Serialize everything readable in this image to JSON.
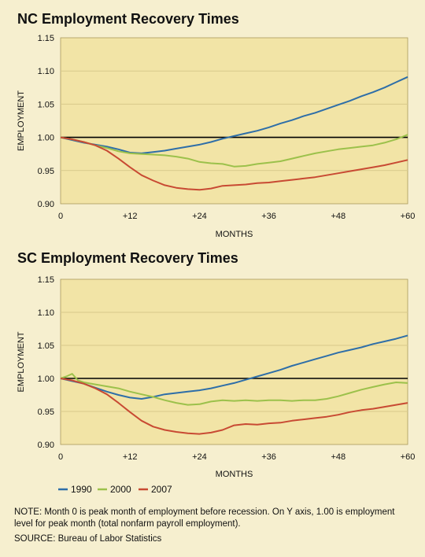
{
  "colors": {
    "page_bg": "#f6efcf",
    "plot_bg": "#f2e4a6",
    "grid": "#d8c98b",
    "baseline": "#000000",
    "series_1990": "#2e6ea8",
    "series_2000": "#9cc14b",
    "series_2007": "#c84a33"
  },
  "legend": {
    "placement": "bottom-left",
    "items": [
      "1990",
      "2000",
      "2007"
    ]
  },
  "note": "NOTE: Month 0 is peak month of employment before recession. On Y axis, 1.00 is employment level for peak month (total nonfarm payroll employment).",
  "source": "SOURCE: Bureau of Labor Statistics",
  "chart_data": [
    {
      "type": "line",
      "title": "NC Employment Recovery Times",
      "xlabel": "MONTHS",
      "ylabel": "EMPLOYMENT",
      "xlim": [
        0,
        60
      ],
      "ylim": [
        0.9,
        1.15
      ],
      "xticks": [
        "0",
        "+12",
        "+24",
        "+36",
        "+48",
        "+60"
      ],
      "yticks": [
        "1.15",
        "1.10",
        "1.05",
        "1.00",
        "0.95",
        "0.90"
      ],
      "grid": true,
      "reference_line": 1.0,
      "series": [
        {
          "name": "1990",
          "x": [
            0,
            2,
            4,
            6,
            8,
            10,
            12,
            14,
            16,
            18,
            20,
            22,
            24,
            26,
            28,
            30,
            32,
            34,
            36,
            38,
            40,
            42,
            44,
            46,
            48,
            50,
            52,
            54,
            56,
            58,
            60
          ],
          "values": [
            1.0,
            0.996,
            0.992,
            0.989,
            0.986,
            0.982,
            0.977,
            0.976,
            0.978,
            0.98,
            0.983,
            0.986,
            0.989,
            0.993,
            0.998,
            1.002,
            1.006,
            1.01,
            1.015,
            1.021,
            1.026,
            1.032,
            1.037,
            1.043,
            1.049,
            1.055,
            1.062,
            1.068,
            1.075,
            1.083,
            1.091
          ]
        },
        {
          "name": "2000",
          "x": [
            0,
            2,
            4,
            6,
            8,
            10,
            12,
            14,
            16,
            18,
            20,
            22,
            24,
            26,
            28,
            30,
            32,
            34,
            36,
            38,
            40,
            42,
            44,
            46,
            48,
            50,
            52,
            54,
            56,
            58,
            60
          ],
          "values": [
            1.0,
            0.997,
            0.993,
            0.988,
            0.984,
            0.979,
            0.976,
            0.975,
            0.974,
            0.973,
            0.971,
            0.968,
            0.963,
            0.961,
            0.96,
            0.956,
            0.957,
            0.96,
            0.962,
            0.964,
            0.968,
            0.972,
            0.976,
            0.979,
            0.982,
            0.984,
            0.986,
            0.988,
            0.992,
            0.997,
            1.004
          ]
        },
        {
          "name": "2007",
          "x": [
            0,
            2,
            4,
            6,
            8,
            10,
            12,
            14,
            16,
            18,
            20,
            22,
            24,
            26,
            28,
            30,
            32,
            34,
            36,
            38,
            40,
            42,
            44,
            46,
            48,
            50,
            52,
            54,
            56,
            58,
            60
          ],
          "values": [
            1.0,
            0.997,
            0.993,
            0.988,
            0.98,
            0.968,
            0.955,
            0.943,
            0.935,
            0.928,
            0.924,
            0.922,
            0.921,
            0.923,
            0.927,
            0.928,
            0.929,
            0.931,
            0.932,
            0.934,
            0.936,
            0.938,
            0.94,
            0.943,
            0.946,
            0.949,
            0.952,
            0.955,
            0.958,
            0.962,
            0.966
          ]
        }
      ]
    },
    {
      "type": "line",
      "title": "SC Employment Recovery Times",
      "xlabel": "MONTHS",
      "ylabel": "EMPLOYMENT",
      "xlim": [
        0,
        60
      ],
      "ylim": [
        0.9,
        1.15
      ],
      "xticks": [
        "0",
        "+12",
        "+24",
        "+36",
        "+48",
        "+60"
      ],
      "yticks": [
        "1.15",
        "1.10",
        "1.05",
        "1.00",
        "0.95",
        "0.90"
      ],
      "grid": true,
      "reference_line": 1.0,
      "series": [
        {
          "name": "1990",
          "x": [
            0,
            2,
            4,
            6,
            8,
            10,
            12,
            14,
            16,
            18,
            20,
            22,
            24,
            26,
            28,
            30,
            32,
            34,
            36,
            38,
            40,
            42,
            44,
            46,
            48,
            50,
            52,
            54,
            56,
            58,
            60
          ],
          "values": [
            1.0,
            0.996,
            0.992,
            0.986,
            0.98,
            0.975,
            0.971,
            0.969,
            0.972,
            0.976,
            0.978,
            0.98,
            0.982,
            0.985,
            0.989,
            0.993,
            0.998,
            1.003,
            1.008,
            1.013,
            1.019,
            1.024,
            1.029,
            1.034,
            1.039,
            1.043,
            1.047,
            1.052,
            1.056,
            1.06,
            1.065
          ]
        },
        {
          "name": "2000",
          "x": [
            0,
            1,
            2,
            3,
            4,
            6,
            8,
            10,
            12,
            14,
            16,
            18,
            20,
            22,
            24,
            26,
            28,
            30,
            32,
            34,
            36,
            38,
            40,
            42,
            44,
            46,
            48,
            50,
            52,
            54,
            56,
            58,
            60
          ],
          "values": [
            1.0,
            1.003,
            1.007,
            0.997,
            0.994,
            0.991,
            0.988,
            0.985,
            0.98,
            0.976,
            0.972,
            0.967,
            0.963,
            0.96,
            0.961,
            0.965,
            0.967,
            0.966,
            0.967,
            0.966,
            0.967,
            0.967,
            0.966,
            0.967,
            0.967,
            0.969,
            0.973,
            0.978,
            0.983,
            0.987,
            0.991,
            0.994,
            0.993
          ]
        },
        {
          "name": "2007",
          "x": [
            0,
            2,
            4,
            6,
            8,
            10,
            12,
            14,
            16,
            18,
            20,
            22,
            24,
            26,
            28,
            30,
            32,
            34,
            36,
            38,
            40,
            42,
            44,
            46,
            48,
            50,
            52,
            54,
            56,
            58,
            60
          ],
          "values": [
            1.0,
            0.997,
            0.992,
            0.985,
            0.976,
            0.963,
            0.949,
            0.936,
            0.927,
            0.922,
            0.919,
            0.917,
            0.916,
            0.918,
            0.922,
            0.929,
            0.931,
            0.93,
            0.932,
            0.933,
            0.936,
            0.938,
            0.94,
            0.942,
            0.945,
            0.949,
            0.952,
            0.954,
            0.957,
            0.96,
            0.963
          ]
        }
      ]
    }
  ]
}
